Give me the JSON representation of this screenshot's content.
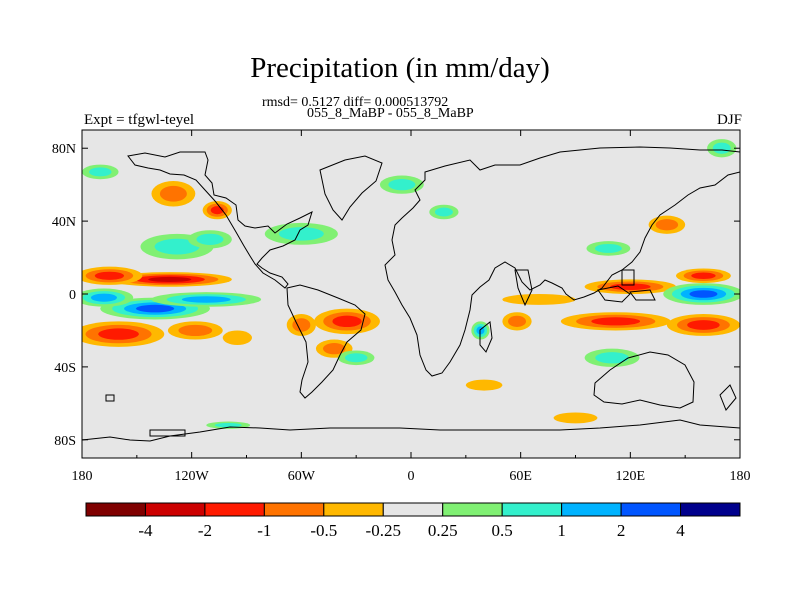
{
  "chart_data": {
    "type": "heatmap",
    "title": "Precipitation (in mm/day)",
    "stats_line": "rmsd= 0.5127 diff= 0.000513792",
    "case_line": "055_8_MaBP - 055_8_MaBP",
    "left_label": "Expt = tfgwl-teyel",
    "right_label": "DJF",
    "xlabel": "",
    "ylabel": "",
    "xlim": [
      -180,
      180
    ],
    "ylim": [
      -90,
      90
    ],
    "x_ticks": [
      {
        "value": -180,
        "label": "180"
      },
      {
        "value": -120,
        "label": "120W"
      },
      {
        "value": -60,
        "label": "60W"
      },
      {
        "value": 0,
        "label": "0"
      },
      {
        "value": 60,
        "label": "60E"
      },
      {
        "value": 120,
        "label": "120E"
      },
      {
        "value": 180,
        "label": "180"
      }
    ],
    "y_ticks": [
      {
        "value": 80,
        "label": "80N"
      },
      {
        "value": 40,
        "label": "40N"
      },
      {
        "value": 0,
        "label": "0"
      },
      {
        "value": -40,
        "label": "40S"
      },
      {
        "value": -80,
        "label": "80S"
      }
    ],
    "colorbar": {
      "levels": [
        {
          "value": -4,
          "label": "-4"
        },
        {
          "value": -2,
          "label": "-2"
        },
        {
          "value": -1,
          "label": "-1"
        },
        {
          "value": -0.5,
          "label": "-0.5"
        },
        {
          "value": -0.25,
          "label": "-0.25"
        },
        {
          "value": 0.25,
          "label": "0.25"
        },
        {
          "value": 0.5,
          "label": "0.5"
        },
        {
          "value": 1,
          "label": "1"
        },
        {
          "value": 2,
          "label": "2"
        },
        {
          "value": 4,
          "label": "4"
        }
      ],
      "colors": [
        "#7f0000",
        "#cc0000",
        "#ff1a00",
        "#ff7300",
        "#ffb800",
        "#e6e6e6",
        "#80f073",
        "#33f0cc",
        "#00b3ff",
        "#0055ff",
        "#00008c"
      ]
    },
    "colors": {
      "background": "#e6e6e6",
      "coastline": "#000000"
    },
    "anomalies": [
      {
        "lon": -140,
        "lat": -8,
        "dlon": 30,
        "dlat": 6,
        "value": 2.5
      },
      {
        "lon": -168,
        "lat": -2,
        "dlon": 16,
        "dlat": 5,
        "value": 1.5
      },
      {
        "lon": -112,
        "lat": -3,
        "dlon": 30,
        "dlat": 4,
        "value": 1.3
      },
      {
        "lon": -132,
        "lat": 8,
        "dlon": 34,
        "dlat": 4,
        "value": -2.2
      },
      {
        "lon": -165,
        "lat": 10,
        "dlon": 18,
        "dlat": 5,
        "value": -1.1
      },
      {
        "lon": -160,
        "lat": -22,
        "dlon": 25,
        "dlat": 7,
        "value": -1.3
      },
      {
        "lon": -118,
        "lat": -20,
        "dlon": 15,
        "dlat": 5,
        "value": -0.7
      },
      {
        "lon": -95,
        "lat": -24,
        "dlon": 8,
        "dlat": 4,
        "value": -0.4
      },
      {
        "lon": -128,
        "lat": 26,
        "dlon": 20,
        "dlat": 7,
        "value": 0.7
      },
      {
        "lon": -110,
        "lat": 30,
        "dlon": 12,
        "dlat": 5,
        "value": 0.9
      },
      {
        "lon": -60,
        "lat": 33,
        "dlon": 20,
        "dlat": 6,
        "value": 0.7
      },
      {
        "lon": -130,
        "lat": 55,
        "dlon": 12,
        "dlat": 7,
        "value": -1.0
      },
      {
        "lon": -106,
        "lat": 46,
        "dlon": 8,
        "dlat": 5,
        "value": -1.5
      },
      {
        "lon": -170,
        "lat": 67,
        "dlon": 10,
        "dlat": 4,
        "value": 0.5
      },
      {
        "lon": -35,
        "lat": -15,
        "dlon": 18,
        "dlat": 7,
        "value": -1.5
      },
      {
        "lon": -60,
        "lat": -17,
        "dlon": 8,
        "dlat": 6,
        "value": -0.7
      },
      {
        "lon": -42,
        "lat": -30,
        "dlon": 10,
        "dlat": 5,
        "value": -0.6
      },
      {
        "lon": -30,
        "lat": -35,
        "dlon": 10,
        "dlat": 4,
        "value": 0.6
      },
      {
        "lon": -5,
        "lat": 60,
        "dlon": 12,
        "dlat": 5,
        "value": 0.8
      },
      {
        "lon": 18,
        "lat": 45,
        "dlon": 8,
        "dlat": 4,
        "value": 0.5
      },
      {
        "lon": 70,
        "lat": -3,
        "dlon": 20,
        "dlat": 3,
        "value": -0.5
      },
      {
        "lon": 38,
        "lat": -20,
        "dlon": 5,
        "dlat": 5,
        "value": 1.2
      },
      {
        "lon": 58,
        "lat": -15,
        "dlon": 8,
        "dlat": 5,
        "value": -0.8
      },
      {
        "lon": 40,
        "lat": -50,
        "dlon": 10,
        "dlat": 3,
        "value": -0.4
      },
      {
        "lon": 120,
        "lat": 4,
        "dlon": 25,
        "dlat": 4,
        "value": -1.8
      },
      {
        "lon": 160,
        "lat": 10,
        "dlon": 15,
        "dlat": 4,
        "value": -1.2
      },
      {
        "lon": 160,
        "lat": 0,
        "dlon": 22,
        "dlat": 6,
        "value": 2.0
      },
      {
        "lon": 112,
        "lat": -15,
        "dlon": 30,
        "dlat": 5,
        "value": -1.5
      },
      {
        "lon": 160,
        "lat": -17,
        "dlon": 20,
        "dlat": 6,
        "value": -1.8
      },
      {
        "lon": 108,
        "lat": 25,
        "dlon": 12,
        "dlat": 4,
        "value": 0.8
      },
      {
        "lon": 140,
        "lat": 38,
        "dlon": 10,
        "dlat": 5,
        "value": -0.9
      },
      {
        "lon": 170,
        "lat": 80,
        "dlon": 8,
        "dlat": 5,
        "value": 0.6
      },
      {
        "lon": 110,
        "lat": -35,
        "dlon": 15,
        "dlat": 5,
        "value": 0.7
      },
      {
        "lon": 90,
        "lat": -68,
        "dlon": 12,
        "dlat": 3,
        "value": -0.4
      },
      {
        "lon": -100,
        "lat": -72,
        "dlon": 12,
        "dlat": 2,
        "value": 0.5
      }
    ]
  }
}
